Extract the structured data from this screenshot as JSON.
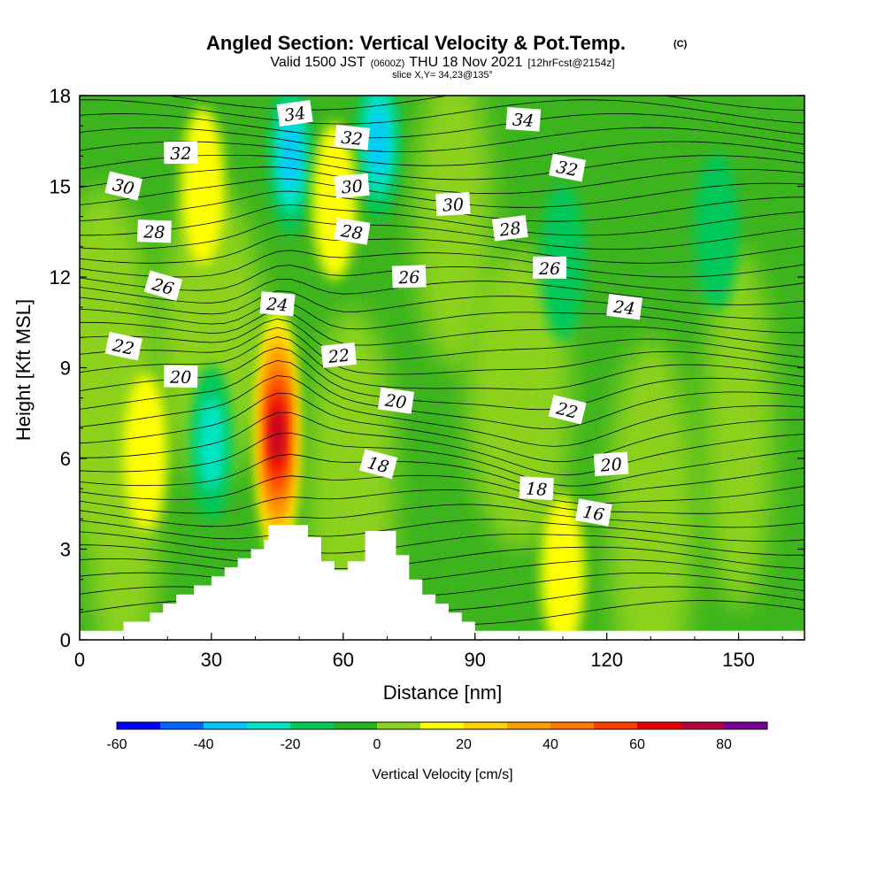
{
  "chart_data": {
    "type": "heatmap",
    "title": "Angled Section: Vertical Velocity & Pot.Temp.",
    "title_suffix": "(C)",
    "subtitle": {
      "prefix": "Valid 1500 JST",
      "utc": "(0600Z)",
      "date": "THU 18 Nov 2021",
      "forecast": "[12hrFcst@2154z]"
    },
    "slice_label": "slice X,Y= 34,23@135°",
    "xlabel": "Distance [nm]",
    "ylabel": "Height [Kft MSL]",
    "xlim": [
      0,
      165
    ],
    "ylim": [
      0,
      18
    ],
    "x_ticks": [
      0,
      30,
      60,
      90,
      120,
      150
    ],
    "y_ticks": [
      0,
      3,
      6,
      9,
      12,
      15,
      18
    ],
    "shaded_field": {
      "name": "Vertical Velocity [cm/s]",
      "levels": [
        -60,
        -50,
        -40,
        -30,
        -20,
        -10,
        0,
        10,
        20,
        30,
        40,
        50,
        60,
        70,
        80,
        90
      ],
      "colors": [
        "#0000ff",
        "#0066ff",
        "#00c8ff",
        "#00e6c8",
        "#00c85a",
        "#22b422",
        "#8cd21e",
        "#ffff00",
        "#ffd200",
        "#ffa000",
        "#ff7800",
        "#ff3c00",
        "#e60000",
        "#b4003c",
        "#780096"
      ],
      "colorbar_ticks": [
        -60,
        -40,
        -20,
        0,
        20,
        40,
        60,
        80
      ],
      "features": [
        {
          "kind": "updraft",
          "x": 45,
          "y": 6.8,
          "peak": 75
        },
        {
          "kind": "downdraft",
          "x": 48,
          "y": 16,
          "peak": -35
        },
        {
          "kind": "downdraft",
          "x": 68,
          "y": 16.5,
          "peak": -35
        },
        {
          "kind": "updraft",
          "x": 28,
          "y": 15,
          "peak": 15
        },
        {
          "kind": "updraft",
          "x": 58,
          "y": 14.5,
          "peak": 15
        },
        {
          "kind": "updraft",
          "x": 110,
          "y": 2.2,
          "peak": 15
        },
        {
          "kind": "updraft",
          "x": 15,
          "y": 6.2,
          "peak": 12
        },
        {
          "kind": "downdraft",
          "x": 30,
          "y": 6.5,
          "peak": -20
        },
        {
          "kind": "downdraft",
          "x": 110,
          "y": 12.5,
          "peak": -15
        },
        {
          "kind": "downdraft",
          "x": 145,
          "y": 13.5,
          "peak": -15
        }
      ]
    },
    "contour_field": {
      "name": "Pot.Temp. (C)",
      "levels": [
        16,
        18,
        20,
        22,
        24,
        26,
        28,
        30,
        32,
        34
      ],
      "labels": [
        {
          "text": "34",
          "x": 49,
          "y": 17.4
        },
        {
          "text": "32",
          "x": 23,
          "y": 16.1
        },
        {
          "text": "32",
          "x": 62,
          "y": 16.6
        },
        {
          "text": "30",
          "x": 10,
          "y": 15.0
        },
        {
          "text": "30",
          "x": 62,
          "y": 15.0
        },
        {
          "text": "28",
          "x": 17,
          "y": 13.5
        },
        {
          "text": "28",
          "x": 62,
          "y": 13.5
        },
        {
          "text": "26",
          "x": 19,
          "y": 11.7
        },
        {
          "text": "26",
          "x": 75,
          "y": 12.0
        },
        {
          "text": "24",
          "x": 45,
          "y": 11.1
        },
        {
          "text": "22",
          "x": 10,
          "y": 9.7
        },
        {
          "text": "22",
          "x": 59,
          "y": 9.4
        },
        {
          "text": "20",
          "x": 23,
          "y": 8.7
        },
        {
          "text": "20",
          "x": 72,
          "y": 7.9
        },
        {
          "text": "18",
          "x": 68,
          "y": 5.8
        },
        {
          "text": "30",
          "x": 85,
          "y": 14.4
        },
        {
          "text": "34",
          "x": 101,
          "y": 17.2
        },
        {
          "text": "32",
          "x": 111,
          "y": 15.6
        },
        {
          "text": "28",
          "x": 98,
          "y": 13.6
        },
        {
          "text": "26",
          "x": 107,
          "y": 12.3
        },
        {
          "text": "24",
          "x": 124,
          "y": 11.0
        },
        {
          "text": "22",
          "x": 111,
          "y": 7.6
        },
        {
          "text": "20",
          "x": 121,
          "y": 5.8
        },
        {
          "text": "18",
          "x": 104,
          "y": 5.0
        },
        {
          "text": "16",
          "x": 117,
          "y": 4.2
        }
      ]
    },
    "terrain": [
      [
        0,
        0.3
      ],
      [
        10,
        0.3
      ],
      [
        10,
        0.6
      ],
      [
        16,
        0.6
      ],
      [
        16,
        0.9
      ],
      [
        19,
        0.9
      ],
      [
        19,
        1.2
      ],
      [
        22,
        1.2
      ],
      [
        22,
        1.5
      ],
      [
        26,
        1.5
      ],
      [
        26,
        1.8
      ],
      [
        30,
        1.8
      ],
      [
        30,
        2.1
      ],
      [
        33,
        2.1
      ],
      [
        33,
        2.4
      ],
      [
        36,
        2.4
      ],
      [
        36,
        2.7
      ],
      [
        39,
        2.7
      ],
      [
        39,
        3.0
      ],
      [
        42,
        3.0
      ],
      [
        42,
        3.3
      ],
      [
        43,
        3.3
      ],
      [
        43,
        3.8
      ],
      [
        52,
        3.8
      ],
      [
        52,
        3.4
      ],
      [
        55,
        3.4
      ],
      [
        55,
        2.6
      ],
      [
        58,
        2.6
      ],
      [
        58,
        2.3
      ],
      [
        61,
        2.3
      ],
      [
        61,
        2.6
      ],
      [
        65,
        2.6
      ],
      [
        65,
        3.6
      ],
      [
        72,
        3.6
      ],
      [
        72,
        2.8
      ],
      [
        75,
        2.8
      ],
      [
        75,
        2.0
      ],
      [
        78,
        2.0
      ],
      [
        78,
        1.5
      ],
      [
        81,
        1.5
      ],
      [
        81,
        1.2
      ],
      [
        84,
        1.2
      ],
      [
        84,
        0.9
      ],
      [
        87,
        0.9
      ],
      [
        87,
        0.6
      ],
      [
        90,
        0.6
      ],
      [
        90,
        0.3
      ],
      [
        165,
        0.3
      ]
    ]
  }
}
